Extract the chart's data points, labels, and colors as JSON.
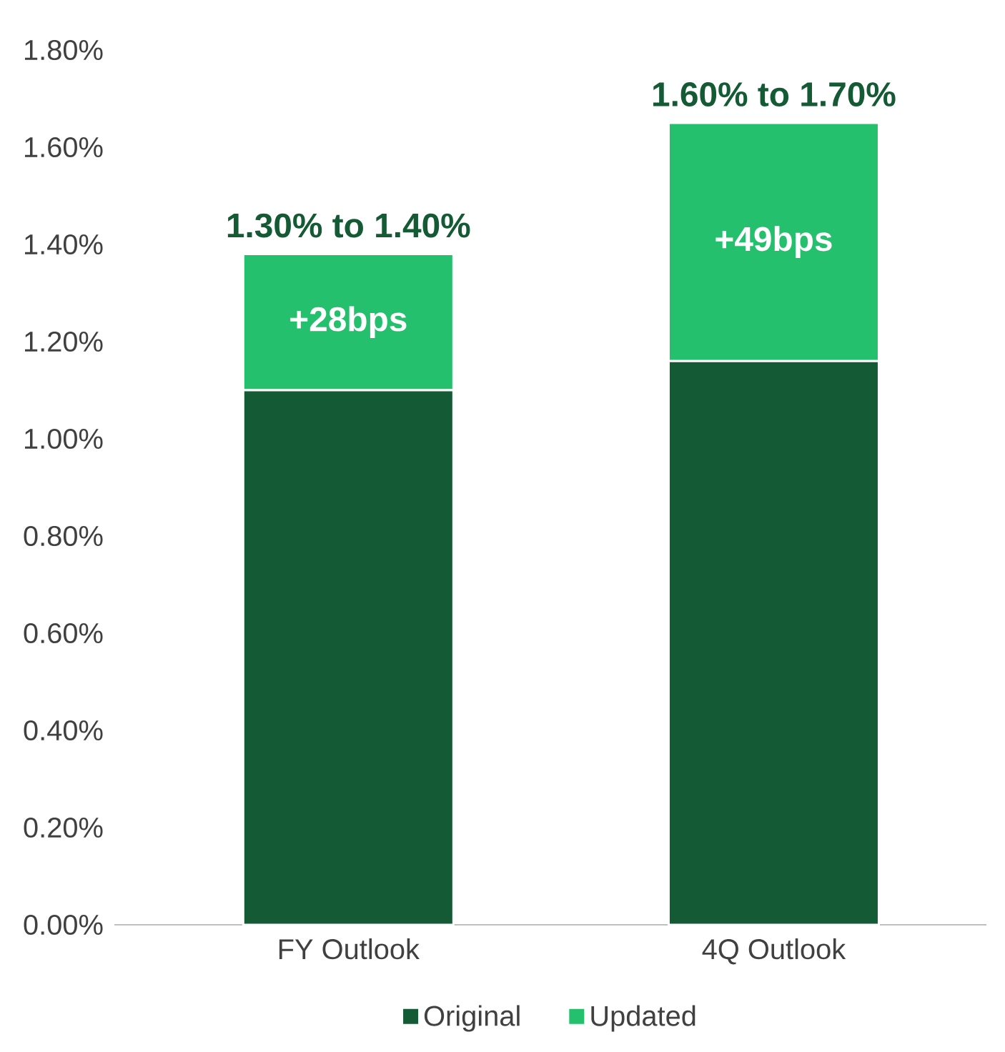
{
  "chart_data": {
    "type": "bar",
    "stacked": true,
    "categories": [
      "FY Outlook",
      "4Q Outlook"
    ],
    "series": [
      {
        "name": "Original",
        "color": "#145a34",
        "values": [
          1.1,
          1.16
        ]
      },
      {
        "name": "Updated",
        "color": "#25c06d",
        "values": [
          0.28,
          0.49
        ]
      }
    ],
    "annotations": [
      "+28bps",
      "+49bps"
    ],
    "totals": [
      "1.30% to 1.40%",
      "1.60% to 1.70%"
    ],
    "ylim": [
      0,
      1.8
    ],
    "yticks": [
      {
        "value": 0,
        "label": "0.00%"
      },
      {
        "value": 0.2,
        "label": "0.20%"
      },
      {
        "value": 0.4,
        "label": "0.40%"
      },
      {
        "value": 0.6,
        "label": "0.60%"
      },
      {
        "value": 0.8,
        "label": "0.80%"
      },
      {
        "value": 1.0,
        "label": "1.00%"
      },
      {
        "value": 1.2,
        "label": "1.20%"
      },
      {
        "value": 1.4,
        "label": "1.40%"
      },
      {
        "value": 1.6,
        "label": "1.60%"
      },
      {
        "value": 1.8,
        "label": "1.80%"
      }
    ],
    "grid": false,
    "legend": "bottom"
  }
}
